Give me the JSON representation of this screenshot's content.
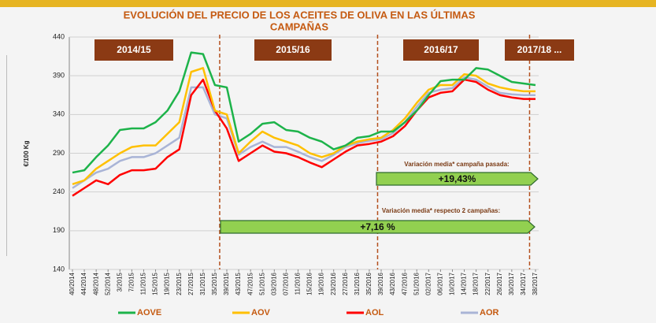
{
  "chart_data": {
    "type": "line",
    "title": "EVOLUCIÓN DEL PRECIO DE LOS ACEITES DE OLIVA EN LAS ÚLTIMAS",
    "title_line2": "CAMPAÑAS",
    "ylabel": "€/100 Kg",
    "categories": [
      "40/2014",
      "44/2014",
      "48/2014",
      "52/2014",
      "3/2015",
      "7/2015",
      "11/2015",
      "15/2015",
      "19/2015",
      "23/2015",
      "27/2015",
      "31/2015",
      "35/2015",
      "39/2015",
      "43/2015",
      "47/2015",
      "51/2015",
      "03/2016",
      "07/2016",
      "11/2016",
      "15/2016",
      "19/2016",
      "23/2016",
      "27/2016",
      "31/2016",
      "35/2016",
      "39/2016",
      "43/2016",
      "47/2016",
      "51/2016",
      "02/2017",
      "06/2017",
      "10/2017",
      "14/2017",
      "18/2017",
      "22/2017",
      "26/2017",
      "30/2017",
      "34/2017",
      "38/2017"
    ],
    "series": [
      {
        "name": "AOVE",
        "color": "#1db34a",
        "values": [
          265,
          268,
          285,
          300,
          320,
          322,
          322,
          330,
          345,
          370,
          420,
          418,
          378,
          375,
          305,
          315,
          328,
          330,
          320,
          318,
          310,
          305,
          295,
          300,
          310,
          312,
          318,
          318,
          330,
          345,
          365,
          383,
          385,
          385,
          400,
          398,
          390,
          382,
          380,
          378
        ]
      },
      {
        "name": "AOV",
        "color": "#ffc000",
        "values": [
          250,
          255,
          270,
          280,
          290,
          298,
          300,
          300,
          315,
          330,
          395,
          400,
          345,
          340,
          290,
          305,
          318,
          310,
          305,
          300,
          290,
          285,
          290,
          300,
          305,
          308,
          310,
          320,
          335,
          355,
          372,
          378,
          378,
          392,
          390,
          380,
          375,
          372,
          370,
          370
        ]
      },
      {
        "name": "AOL",
        "color": "#ff0000",
        "values": [
          235,
          245,
          255,
          250,
          262,
          268,
          268,
          270,
          285,
          295,
          365,
          385,
          345,
          322,
          280,
          290,
          300,
          292,
          290,
          285,
          278,
          272,
          282,
          292,
          300,
          302,
          305,
          312,
          325,
          345,
          362,
          368,
          370,
          385,
          382,
          372,
          365,
          362,
          360,
          360
        ]
      },
      {
        "name": "AOR",
        "color": "#a9b4d6",
        "values": [
          245,
          255,
          265,
          270,
          280,
          285,
          285,
          290,
          300,
          310,
          375,
          375,
          340,
          335,
          288,
          298,
          305,
          298,
          298,
          292,
          285,
          280,
          288,
          298,
          303,
          306,
          308,
          316,
          330,
          350,
          368,
          372,
          374,
          388,
          385,
          376,
          368,
          366,
          365,
          365
        ]
      }
    ],
    "ylim": [
      140,
      440
    ],
    "yticks": [
      140,
      190,
      240,
      290,
      340,
      390,
      440
    ],
    "campaigns": [
      "2014/15",
      "2015/16",
      "2016/17",
      "2017/18 ..."
    ],
    "annotations": [
      {
        "label": "Variación media* campaña pasada:",
        "value_label": "+19,43%"
      },
      {
        "label": "Variación media* respecto 2 campañas:",
        "value_label": "+7,16 %"
      }
    ]
  }
}
